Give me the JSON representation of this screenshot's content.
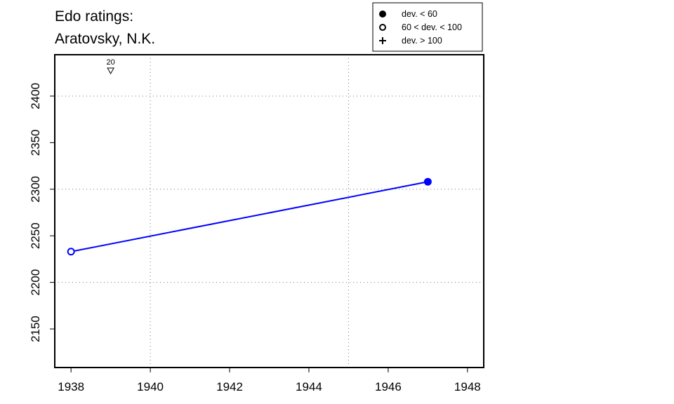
{
  "chart_data": {
    "type": "line",
    "title": "Edo ratings:",
    "subtitle": "Aratovsky, N.K.",
    "x": [
      1938,
      1947
    ],
    "values": [
      2233,
      2308
    ],
    "point_styles": [
      "open",
      "filled"
    ],
    "color": "#0000ff",
    "xlim": [
      1937.59,
      1948.41
    ],
    "ylim": [
      2108.6,
      2444.4
    ],
    "xticks": [
      1938,
      1940,
      1942,
      1944,
      1946,
      1948
    ],
    "yticks": [
      2150,
      2200,
      2250,
      2300,
      2350,
      2400
    ],
    "xgrid": [
      1940,
      1945
    ],
    "ygrid": [
      2200,
      2300,
      2400
    ],
    "legend": [
      {
        "label": "dev. < 60",
        "marker": "filled"
      },
      {
        "label": "60 < dev. < 100",
        "marker": "open"
      },
      {
        "label": "dev. > 100",
        "marker": "cross"
      }
    ],
    "annotation": {
      "text": "20",
      "x": 1939
    }
  }
}
